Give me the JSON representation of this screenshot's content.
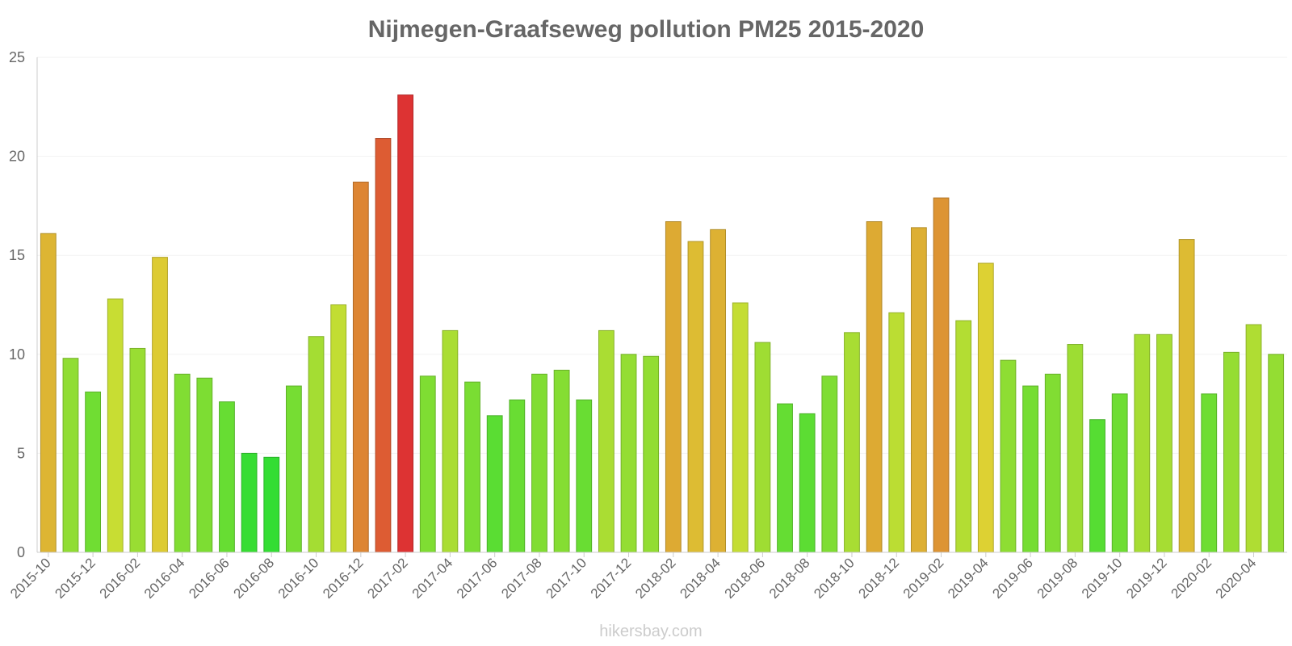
{
  "chart_data": {
    "type": "bar",
    "title": "Nijmegen-Graafseweg pollution PM25 2015-2020",
    "xlabel": "",
    "ylabel": "",
    "ylim": [
      0,
      25
    ],
    "yticks": [
      0,
      5,
      10,
      15,
      20,
      25
    ],
    "grid": true,
    "categories": [
      "2015-10",
      "2015-11",
      "2015-12",
      "2016-01",
      "2016-02",
      "2016-03",
      "2016-04",
      "2016-05",
      "2016-06",
      "2016-07",
      "2016-08",
      "2016-09",
      "2016-10",
      "2016-11",
      "2016-12",
      "2017-01",
      "2017-02",
      "2017-03",
      "2017-04",
      "2017-05",
      "2017-06",
      "2017-07",
      "2017-08",
      "2017-09",
      "2017-10",
      "2017-11",
      "2017-12",
      "2018-01",
      "2018-02",
      "2018-03",
      "2018-04",
      "2018-05",
      "2018-06",
      "2018-07",
      "2018-08",
      "2018-09",
      "2018-10",
      "2018-11",
      "2018-12",
      "2019-01",
      "2019-02",
      "2019-03",
      "2019-04",
      "2019-05",
      "2019-06",
      "2019-07",
      "2019-08",
      "2019-09",
      "2019-10",
      "2019-11",
      "2019-12",
      "2020-01",
      "2020-02",
      "2020-03",
      "2020-04",
      "2020-05"
    ],
    "tick_labels": [
      "2015-10",
      "2015-12",
      "2016-02",
      "2016-04",
      "2016-06",
      "2016-08",
      "2016-10",
      "2016-12",
      "2017-02",
      "2017-04",
      "2017-06",
      "2017-08",
      "2017-10",
      "2017-12",
      "2018-02",
      "2018-04",
      "2018-06",
      "2018-08",
      "2018-10",
      "2018-12",
      "2019-02",
      "2019-04",
      "2019-06",
      "2019-08",
      "2019-10",
      "2019-12",
      "2020-02",
      "2020-04"
    ],
    "values": [
      16.1,
      9.8,
      8.1,
      12.8,
      10.3,
      14.9,
      9.0,
      8.8,
      7.6,
      5.0,
      4.8,
      8.4,
      10.9,
      12.5,
      18.7,
      20.9,
      23.1,
      8.9,
      11.2,
      8.6,
      6.9,
      7.7,
      9.0,
      9.2,
      7.7,
      11.2,
      10.0,
      9.9,
      16.7,
      15.7,
      16.3,
      12.6,
      10.6,
      7.5,
      7.0,
      8.9,
      11.1,
      16.7,
      12.1,
      16.4,
      17.9,
      11.7,
      14.6,
      9.7,
      8.4,
      9.0,
      10.5,
      6.7,
      8.0,
      11.0,
      11.0,
      15.8,
      8.0,
      10.1,
      11.5,
      10.0
    ],
    "color_scale": [
      "#33dd33",
      "#dddd33",
      "#dd3333"
    ]
  },
  "footer": {
    "watermark": "hikersbay.com"
  }
}
